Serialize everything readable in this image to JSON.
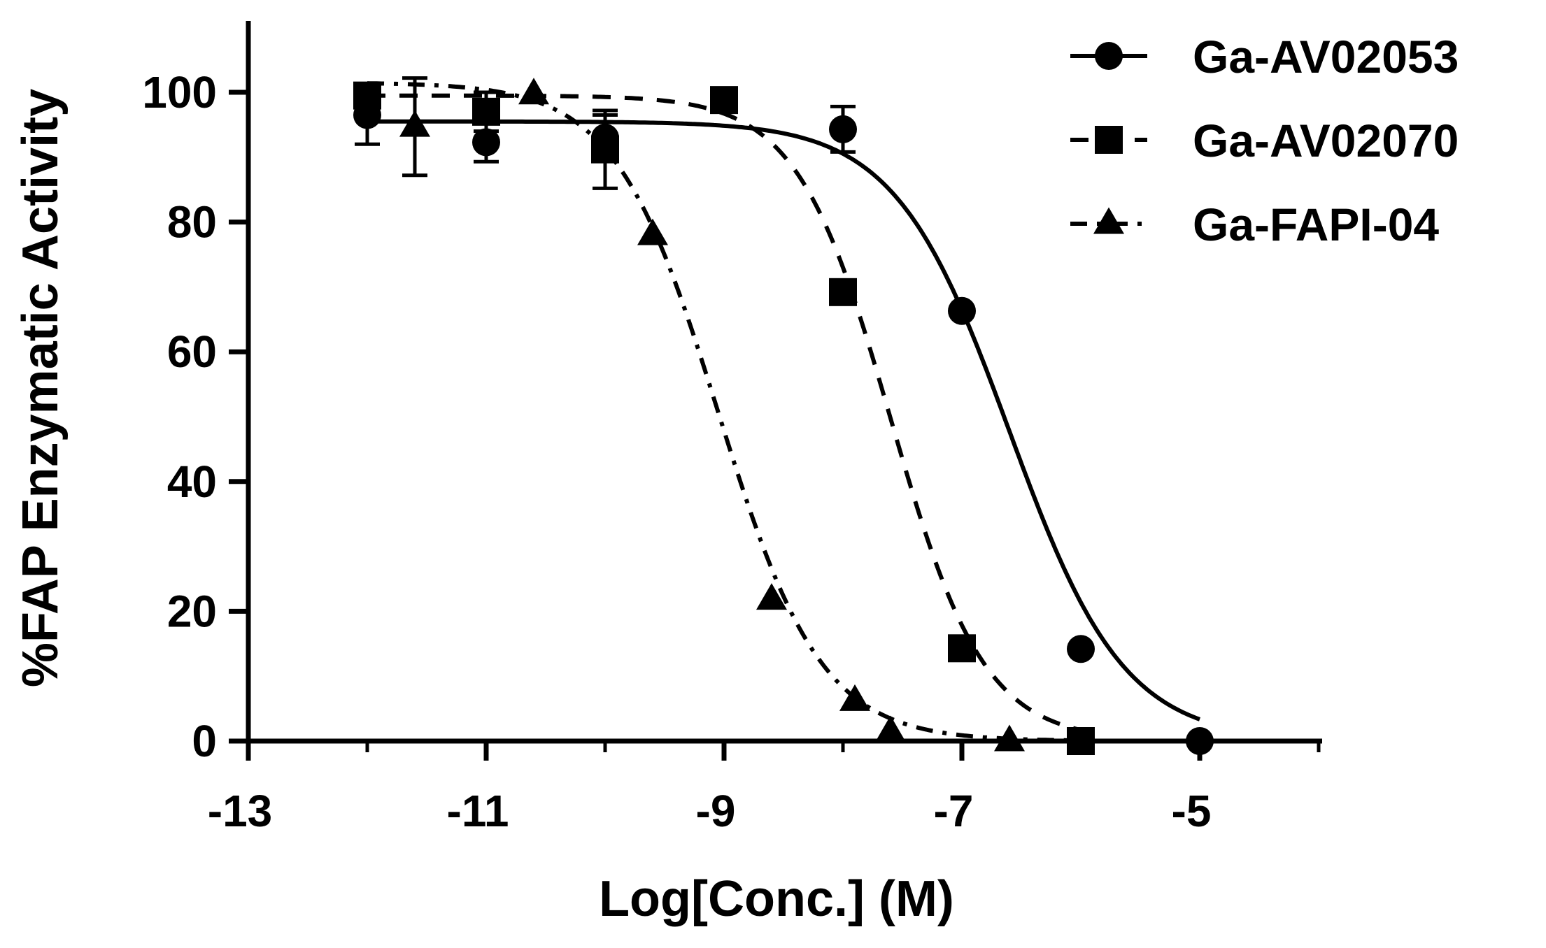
{
  "chart_data": {
    "type": "scatter",
    "xlabel": "Log[Conc.] (M)",
    "ylabel": "%FAP Enzymatic Activity",
    "xlim": [
      -13,
      -4
    ],
    "ylim": [
      0,
      110
    ],
    "x_ticks": [
      -13,
      -11,
      -9,
      -7,
      -5
    ],
    "y_ticks": [
      0,
      20,
      40,
      60,
      80,
      100
    ],
    "x_tick_labels": [
      "-13",
      "-11",
      "-9",
      "-7",
      "-5"
    ],
    "y_tick_labels": [
      "0",
      "20",
      "40",
      "60",
      "80",
      "100"
    ],
    "legend_position": "top-right",
    "series": [
      {
        "name": "Ga-AV02053",
        "marker": "circle",
        "line_style": "solid",
        "points": [
          {
            "x": -12,
            "y": 96.5,
            "err": 4.5
          },
          {
            "x": -11,
            "y": 92.3,
            "err": 3
          },
          {
            "x": -10,
            "y": 93,
            "err": 3.5
          },
          {
            "x": -8,
            "y": 94.3,
            "err": 3.5
          },
          {
            "x": -7,
            "y": 66.3,
            "err": 0
          },
          {
            "x": -6,
            "y": 14.2,
            "err": 0
          },
          {
            "x": -5,
            "y": 0,
            "err": 0
          }
        ],
        "fit": {
          "top": 95.5,
          "bottom": 0,
          "logIC50": -6.6,
          "hill": 0.9
        }
      },
      {
        "name": "Ga-AV02070",
        "marker": "square",
        "line_style": "dashed",
        "points": [
          {
            "x": -12,
            "y": 99.5,
            "err": 1.5
          },
          {
            "x": -11,
            "y": 97,
            "err": 3
          },
          {
            "x": -10,
            "y": 91.2,
            "err": 6
          },
          {
            "x": -9,
            "y": 98.8,
            "err": 0
          },
          {
            "x": -8,
            "y": 69.2,
            "err": 0
          },
          {
            "x": -7,
            "y": 14.3,
            "err": 0
          },
          {
            "x": -6,
            "y": 0,
            "err": 0
          }
        ],
        "fit": {
          "top": 99.5,
          "bottom": 0,
          "logIC50": -7.6,
          "hill": 1.1
        }
      },
      {
        "name": "Ga-FAPI-04",
        "marker": "triangle",
        "line_style": "dash-dot",
        "points": [
          {
            "x": -11.6,
            "y": 94.7,
            "err": 7.5
          },
          {
            "x": -10.6,
            "y": 99.7,
            "err": 0
          },
          {
            "x": -9.6,
            "y": 78,
            "err": 0
          },
          {
            "x": -8.6,
            "y": 21.8,
            "err": 0
          },
          {
            "x": -7.9,
            "y": 6.2,
            "err": 0
          },
          {
            "x": -7.6,
            "y": 1.4,
            "err": 0
          },
          {
            "x": -6.6,
            "y": 0,
            "err": 0
          }
        ],
        "fit": {
          "top": 101.5,
          "bottom": 0,
          "logIC50": -9.05,
          "hill": 1.0
        }
      }
    ]
  }
}
